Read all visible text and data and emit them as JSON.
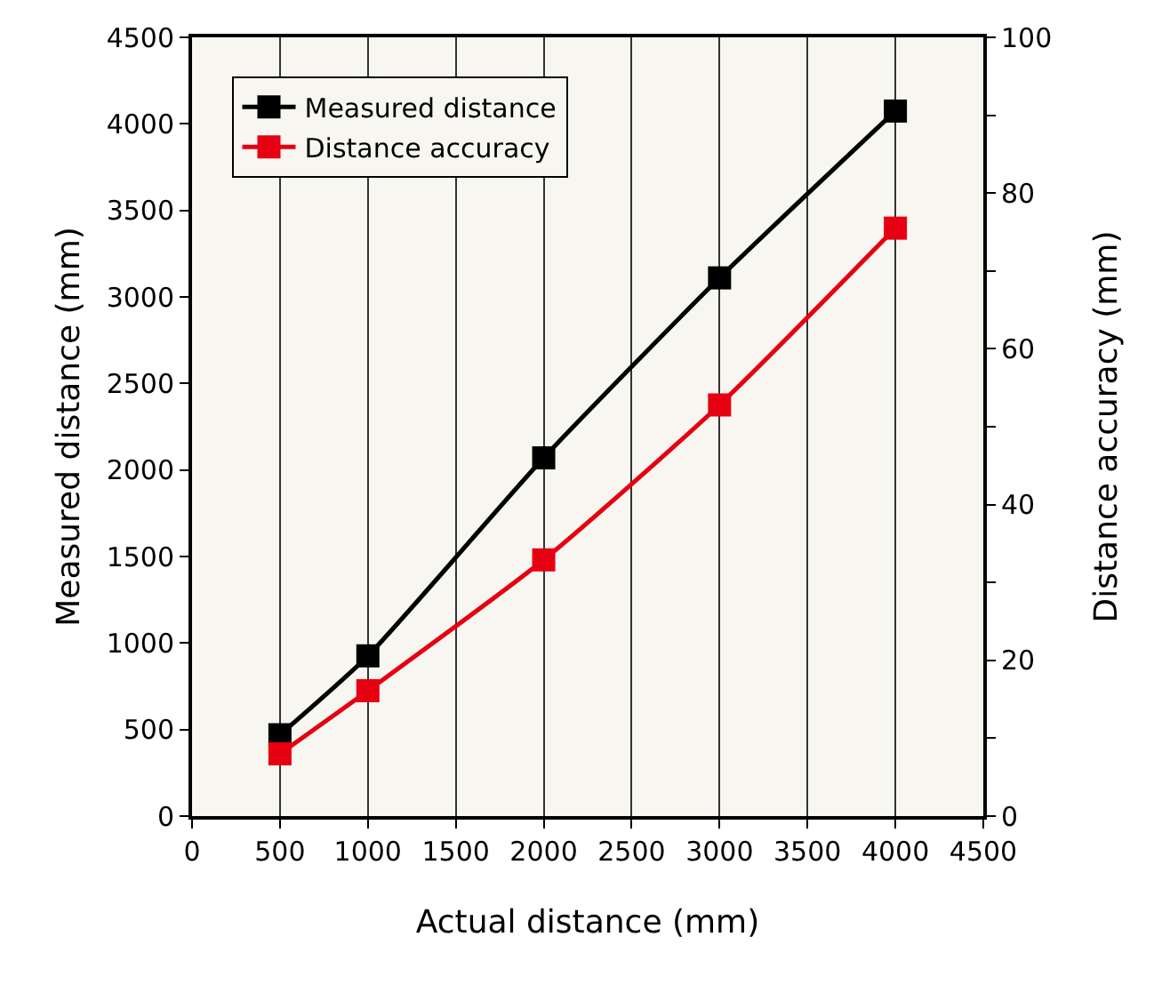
{
  "chart_data": {
    "type": "line",
    "xlabel": "Actual distance (mm)",
    "ylabel": "Measured distance (mm)",
    "y2label": "Distance accuracy (mm)",
    "x": [
      500,
      1000,
      2000,
      3000,
      4000
    ],
    "series": [
      {
        "name": "Measured distance",
        "color": "#000000",
        "values": [
          470,
          926,
          2070,
          3110,
          4074
        ]
      },
      {
        "name": "Distance accuracy",
        "color": "#e60012",
        "values": [
          8.0,
          16.1,
          32.9,
          52.8,
          75.5
        ],
        "axis": "y2"
      }
    ],
    "xlim": [
      0,
      4500
    ],
    "xticks": [
      0,
      500,
      1000,
      1500,
      2000,
      2500,
      3000,
      3500,
      4000,
      4500
    ],
    "ylim": [
      0,
      4500
    ],
    "yticks": [
      0,
      500,
      1000,
      1500,
      2000,
      2500,
      3000,
      3500,
      4000,
      4500
    ],
    "y2lim": [
      0,
      100
    ],
    "y2ticks": [
      0,
      {
        "value": 10,
        "label": null
      },
      20,
      {
        "value": 30,
        "label": null
      },
      40,
      {
        "value": 50,
        "label": null
      },
      60,
      {
        "value": 70,
        "label": null
      },
      80,
      {
        "value": 90,
        "label": null
      },
      100
    ],
    "grid": "x",
    "legend": "top left",
    "marker": "square",
    "line_style": "solid"
  }
}
